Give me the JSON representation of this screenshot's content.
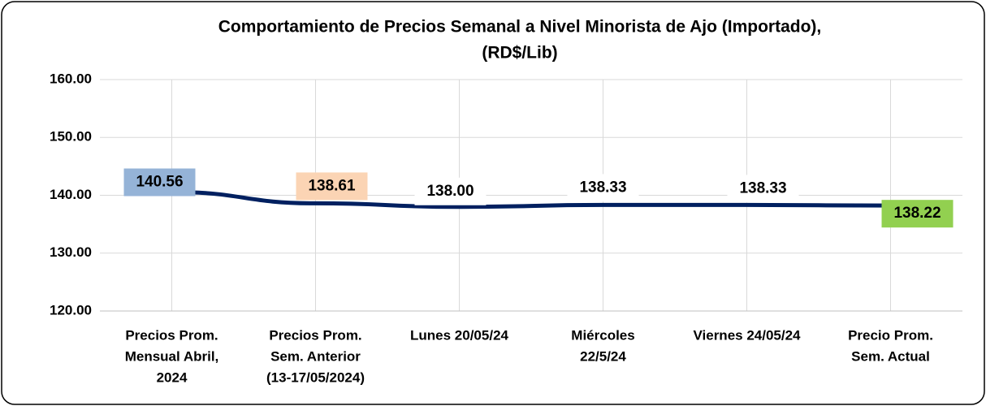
{
  "chart_data": {
    "type": "line",
    "title": [
      "Comportamiento de Precios Semanal a Nivel Minorista de Ajo (Importado),",
      "(RD$/Lib)"
    ],
    "categories": [
      [
        "Precios Prom.",
        "Mensual Abril,",
        "2024"
      ],
      [
        "Precios Prom.",
        "Sem. Anterior",
        "(13-17/05/2024)"
      ],
      [
        "Lunes  20/05/24"
      ],
      [
        "Miércoles",
        "22/5/24"
      ],
      [
        "Viernes 24/05/24"
      ],
      [
        "Precio Prom.",
        "Sem. Actual"
      ]
    ],
    "series": [
      {
        "color": "#002060",
        "values": [
          140.56,
          138.61,
          138.0,
          138.33,
          138.33,
          138.22
        ],
        "value_labels": [
          "140.56",
          "138.61",
          "138.00",
          "138.33",
          "138.33",
          "138.22"
        ],
        "label_colors": [
          "#95b3d7",
          "#fbd4b4",
          "#ffffff",
          "#ffffff",
          "#ffffff",
          "#92d050"
        ]
      }
    ],
    "ylim": [
      120,
      160
    ],
    "yticks": [
      {
        "value": 120,
        "label": "120.00"
      },
      {
        "value": 130,
        "label": "130.00"
      },
      {
        "value": 140,
        "label": "140.00"
      },
      {
        "value": 150,
        "label": "150.00"
      },
      {
        "value": 160,
        "label": "160.00"
      }
    ],
    "grid": true
  }
}
